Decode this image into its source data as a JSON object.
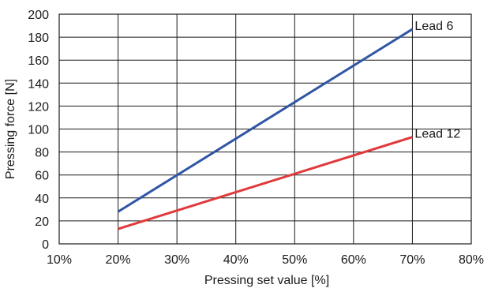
{
  "chart_data": {
    "type": "line",
    "title": "",
    "xlabel": "Pressing set value [%]",
    "ylabel": "Pressing force [N]",
    "xlim": [
      10,
      80
    ],
    "ylim": [
      0,
      200
    ],
    "x_ticks": [
      10,
      20,
      30,
      40,
      50,
      60,
      70,
      80
    ],
    "x_tick_labels": [
      "10%",
      "20%",
      "30%",
      "40%",
      "50%",
      "60%",
      "70%",
      "80%"
    ],
    "y_ticks": [
      0,
      20,
      40,
      60,
      80,
      100,
      120,
      140,
      160,
      180,
      200
    ],
    "y_tick_labels": [
      "0",
      "20",
      "40",
      "60",
      "80",
      "100",
      "120",
      "140",
      "160",
      "180",
      "200"
    ],
    "grid": true,
    "series": [
      {
        "name": "Lead 6",
        "color": "#2f55a4",
        "x": [
          20,
          70
        ],
        "y": [
          28,
          187
        ]
      },
      {
        "name": "Lead 12",
        "color": "#e03a3e",
        "x": [
          20,
          70
        ],
        "y": [
          13,
          93
        ]
      }
    ]
  }
}
